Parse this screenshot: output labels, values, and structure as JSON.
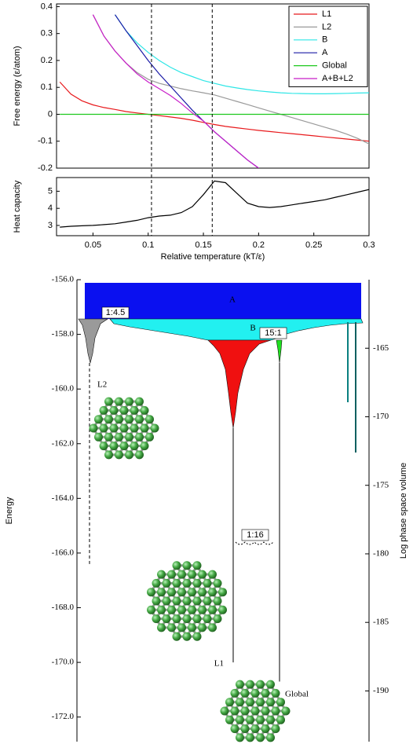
{
  "chart_data": [
    {
      "type": "line",
      "ylabel": "Free energy (ε/atom)",
      "x": [
        0.02,
        0.03,
        0.04,
        0.05,
        0.06,
        0.07,
        0.08,
        0.09,
        0.1,
        0.11,
        0.12,
        0.13,
        0.14,
        0.15,
        0.16,
        0.17,
        0.18,
        0.19,
        0.2,
        0.21,
        0.22,
        0.23,
        0.24,
        0.25,
        0.26,
        0.27,
        0.28,
        0.29,
        0.3
      ],
      "xlim": [
        0.017,
        0.3
      ],
      "ylim": [
        -0.2,
        0.41
      ],
      "yticks": [
        -0.2,
        -0.1,
        0,
        0.1,
        0.2,
        0.3,
        0.4
      ],
      "legend": "upper right",
      "vlines": [
        0.103,
        0.158
      ],
      "series": [
        {
          "name": "L1",
          "color": "#e8191c",
          "values": [
            0.12,
            0.075,
            0.05,
            0.035,
            0.025,
            0.018,
            0.01,
            0.005,
            0,
            -0.005,
            -0.01,
            -0.015,
            -0.022,
            -0.03,
            -0.038,
            -0.045,
            -0.05,
            -0.055,
            -0.06,
            -0.064,
            -0.068,
            -0.072,
            -0.076,
            -0.08,
            -0.084,
            -0.088,
            -0.092,
            -0.096,
            -0.1
          ]
        },
        {
          "name": "L2",
          "color": "#9a9a9a",
          "values": [
            null,
            null,
            null,
            0.37,
            0.29,
            0.235,
            0.19,
            0.155,
            0.13,
            0.115,
            0.105,
            0.095,
            0.087,
            0.08,
            0.072,
            0.06,
            0.048,
            0.036,
            0.024,
            0.012,
            0,
            -0.012,
            -0.024,
            -0.036,
            -0.048,
            -0.06,
            -0.074,
            -0.09,
            -0.11
          ]
        },
        {
          "name": "B",
          "color": "#2ee6e6",
          "values": [
            null,
            null,
            null,
            null,
            null,
            0.37,
            0.31,
            0.265,
            0.23,
            0.2,
            0.175,
            0.155,
            0.14,
            0.125,
            0.115,
            0.105,
            0.098,
            0.092,
            0.087,
            0.083,
            0.08,
            0.078,
            0.077,
            0.076,
            0.076,
            0.077,
            0.078,
            0.079,
            0.08
          ]
        },
        {
          "name": "A",
          "color": "#1a1aa6",
          "values": [
            null,
            null,
            null,
            null,
            null,
            0.37,
            0.31,
            0.255,
            0.2,
            0.15,
            0.105,
            0.06,
            0.015,
            -0.025,
            -0.065,
            -0.1,
            -0.135,
            -0.17,
            -0.2,
            null,
            null,
            null,
            null,
            null,
            null,
            null,
            null,
            null,
            null
          ]
        },
        {
          "name": "Global",
          "color": "#1ec81e",
          "values": [
            0,
            0,
            0,
            0,
            0,
            0,
            0,
            0,
            0,
            0,
            0,
            0,
            0,
            0,
            0,
            0,
            0,
            0,
            0,
            0,
            0,
            0,
            0,
            0,
            0,
            0,
            0,
            0,
            0
          ]
        },
        {
          "name": "A+B+L2",
          "color": "#c81ec8",
          "values": [
            null,
            null,
            null,
            0.37,
            0.29,
            0.235,
            0.19,
            0.15,
            0.12,
            0.095,
            0.07,
            0.04,
            0.005,
            -0.025,
            -0.065,
            -0.1,
            -0.135,
            -0.17,
            -0.2,
            null,
            null,
            null,
            null,
            null,
            null,
            null,
            null,
            null,
            null
          ]
        }
      ]
    },
    {
      "type": "line",
      "ylabel": "Heat capacity",
      "xlabel": "Relative temperature (kT/ε)",
      "x": [
        0.02,
        0.03,
        0.04,
        0.05,
        0.06,
        0.07,
        0.08,
        0.09,
        0.1,
        0.11,
        0.12,
        0.13,
        0.14,
        0.15,
        0.16,
        0.17,
        0.18,
        0.19,
        0.2,
        0.21,
        0.22,
        0.23,
        0.24,
        0.25,
        0.26,
        0.27,
        0.28,
        0.29,
        0.3
      ],
      "xlim": [
        0.017,
        0.3
      ],
      "xticks": [
        0.05,
        0.1,
        0.15,
        0.2,
        0.25,
        0.3
      ],
      "ylim": [
        2.4,
        5.8
      ],
      "yticks": [
        3,
        4,
        5
      ],
      "color": "#000000",
      "values": [
        2.9,
        2.95,
        2.98,
        3.0,
        3.05,
        3.1,
        3.2,
        3.3,
        3.45,
        3.55,
        3.6,
        3.75,
        4.1,
        4.8,
        5.6,
        5.5,
        4.9,
        4.3,
        4.1,
        4.05,
        4.1,
        4.2,
        4.3,
        4.4,
        4.5,
        4.65,
        4.8,
        4.95,
        5.1
      ]
    },
    {
      "type": "disconnectivity",
      "ylabel": "Energy",
      "y2label": "Log phase space volume",
      "ylim": [
        -156,
        -172.9
      ],
      "yticks": [
        {
          "value": -156,
          "label": "-156.0"
        },
        {
          "value": -158,
          "label": "-158.0"
        },
        {
          "value": -160,
          "label": "-160.0"
        },
        {
          "value": -162,
          "label": "-162.0"
        },
        {
          "value": -164,
          "label": "-164.0"
        },
        {
          "value": -166,
          "label": "-166.0"
        },
        {
          "value": -168,
          "label": "-168.0"
        },
        {
          "value": -170,
          "label": "-170.0"
        },
        {
          "value": -172,
          "label": "-172.0"
        }
      ],
      "y2lim": [
        -160,
        -193.7
      ],
      "y2ticks": [
        -165,
        -170,
        -175,
        -180,
        -185,
        -190
      ],
      "regions": [
        "A",
        "B"
      ],
      "ratios": [
        "1:4.5",
        "15:1",
        "1:16"
      ],
      "minima": [
        {
          "label": "L2",
          "energy": -166.4
        },
        {
          "label": "L1",
          "energy": -170
        },
        {
          "label": "Global",
          "energy": -170.7
        }
      ]
    }
  ]
}
